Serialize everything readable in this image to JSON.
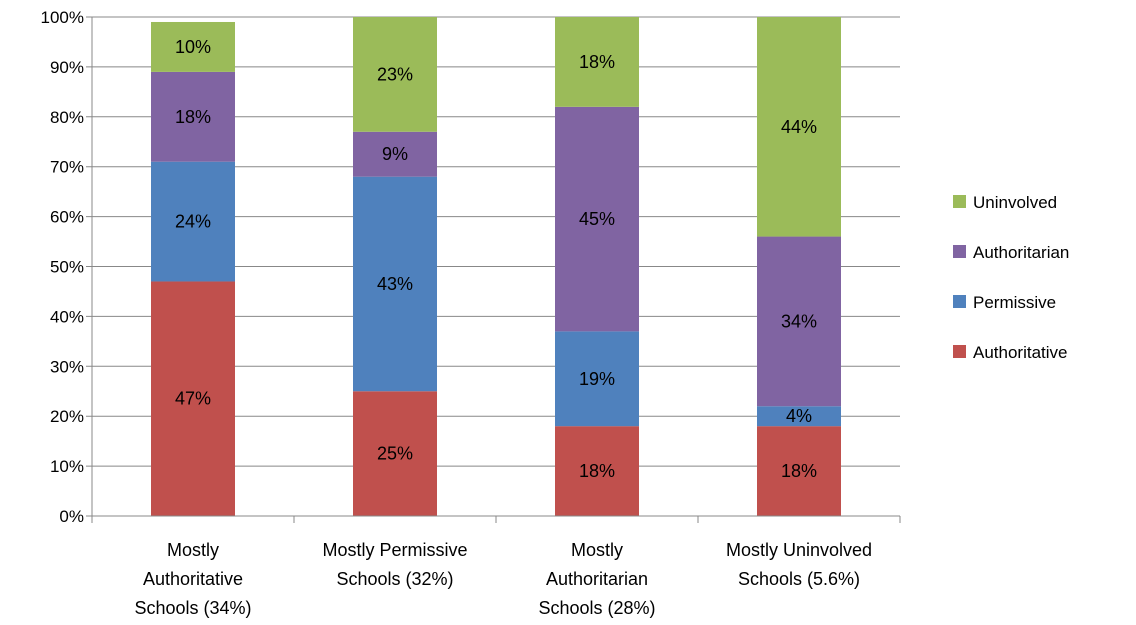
{
  "chart_data": {
    "type": "bar",
    "stacked": true,
    "categories": [
      [
        "Mostly",
        "Authoritative",
        "Schools (34%)"
      ],
      [
        "Mostly Permissive",
        "Schools (32%)"
      ],
      [
        "Mostly",
        "Authoritarian",
        "Schools (28%)"
      ],
      [
        "Mostly Uninvolved",
        "Schools (5.6%)"
      ]
    ],
    "series": [
      {
        "name": "Authoritative",
        "color": "#c0504d",
        "values": [
          47,
          25,
          18,
          18
        ],
        "labels": [
          "47%",
          "25%",
          "18%",
          "18%"
        ]
      },
      {
        "name": "Permissive",
        "color": "#4f81bd",
        "values": [
          24,
          43,
          19,
          4
        ],
        "labels": [
          "24%",
          "43%",
          "19%",
          "4%"
        ]
      },
      {
        "name": "Authoritarian",
        "color": "#8064a2",
        "values": [
          18,
          9,
          45,
          34
        ],
        "labels": [
          "18%",
          "9%",
          "45%",
          "34%"
        ]
      },
      {
        "name": "Uninvolved",
        "color": "#9bbb59",
        "values": [
          10,
          23,
          18,
          44
        ],
        "labels": [
          "10%",
          "23%",
          "18%",
          "44%"
        ]
      }
    ],
    "y_ticks": [
      "0%",
      "10%",
      "20%",
      "30%",
      "40%",
      "50%",
      "60%",
      "70%",
      "80%",
      "90%",
      "100%"
    ],
    "ylim": [
      0,
      100
    ],
    "legend_order": [
      "Uninvolved",
      "Authoritarian",
      "Permissive",
      "Authoritative"
    ],
    "legend_position": "right",
    "grid": true,
    "title": "",
    "xlabel": "",
    "ylabel": ""
  }
}
